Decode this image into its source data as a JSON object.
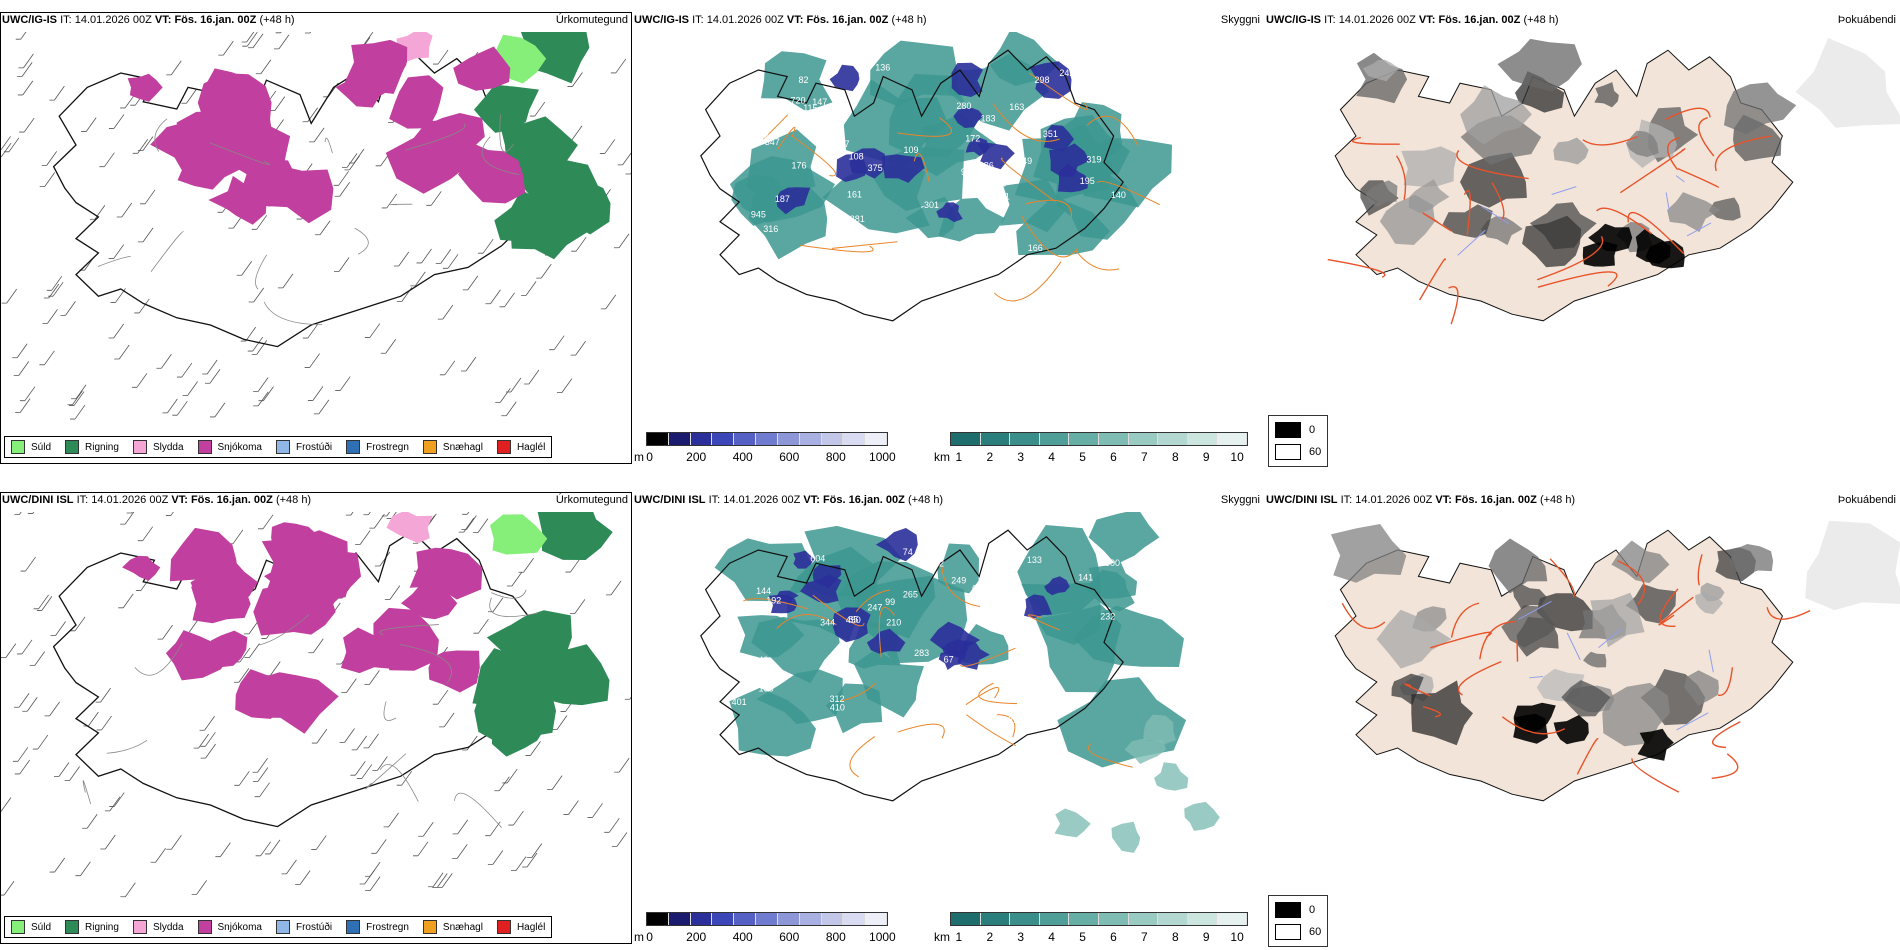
{
  "panels": [
    {
      "model": "UWC/IG-IS",
      "it_label": "IT:",
      "it_value": "14.01.2026 00Z",
      "vt_label": "VT:",
      "vt_value": "Fös. 16.jan. 00Z",
      "lead": "(+48 h)",
      "product": "Úrkomutegund"
    },
    {
      "model": "UWC/IG-IS",
      "it_label": "IT:",
      "it_value": "14.01.2026 00Z",
      "vt_label": "VT:",
      "vt_value": "Fös. 16.jan. 00Z",
      "lead": "(+48 h)",
      "product": "Skyggni"
    },
    {
      "model": "UWC/IG-IS",
      "it_label": "IT:",
      "it_value": "14.01.2026 00Z",
      "vt_label": "VT:",
      "vt_value": "Fös. 16.jan. 00Z",
      "lead": "(+48 h)",
      "product": "Þokuábendi"
    },
    {
      "model": "UWC/DINI ISL",
      "it_label": "IT:",
      "it_value": "14.01.2026 00Z",
      "vt_label": "VT:",
      "vt_value": "Fös. 16.jan. 00Z",
      "lead": "(+48 h)",
      "product": "Úrkomutegund"
    },
    {
      "model": "UWC/DINI ISL",
      "it_label": "IT:",
      "it_value": "14.01.2026 00Z",
      "vt_label": "VT:",
      "vt_value": "Fös. 16.jan. 00Z",
      "lead": "(+48 h)",
      "product": "Skyggni"
    },
    {
      "model": "UWC/DINI ISL",
      "it_label": "IT:",
      "it_value": "14.01.2026 00Z",
      "vt_label": "VT:",
      "vt_value": "Fös. 16.jan. 00Z",
      "lead": "(+48 h)",
      "product": "Þokuábendi"
    }
  ],
  "precip_legend": [
    {
      "label": "Súld",
      "color": "#86ef7a"
    },
    {
      "label": "Rigning",
      "color": "#2e8b57"
    },
    {
      "label": "Slydda",
      "color": "#f4a6d7"
    },
    {
      "label": "Snjókoma",
      "color": "#c13f9e"
    },
    {
      "label": "Frostúði",
      "color": "#8fb8e8"
    },
    {
      "label": "Frostregn",
      "color": "#2f6fb5"
    },
    {
      "label": "Snæhagl",
      "color": "#f0a020"
    },
    {
      "label": "Haglél",
      "color": "#e02020"
    }
  ],
  "ceiling_bar": {
    "unit": "m",
    "ticks": [
      "0",
      "200",
      "400",
      "600",
      "800",
      "1000"
    ],
    "colors": [
      "#000000",
      "#1a1a6e",
      "#2a2f9a",
      "#3b46b8",
      "#5561c4",
      "#6f7ccf",
      "#8d97d8",
      "#a9b0e2",
      "#c2c7ea",
      "#d8dbf2",
      "#eceef8"
    ]
  },
  "visibility_bar": {
    "unit": "km",
    "ticks": [
      "1",
      "2",
      "3",
      "4",
      "5",
      "6",
      "7",
      "8",
      "9",
      "10"
    ],
    "colors": [
      "#1f6e6e",
      "#2a7f7c",
      "#3a8f8a",
      "#4f9f98",
      "#66aea6",
      "#7fbdb4",
      "#99cbc3",
      "#b3d8d1",
      "#cde5df",
      "#e4f1ee"
    ]
  },
  "fog_legend": {
    "rows": [
      {
        "label": "0",
        "color": "#000000"
      },
      {
        "label": "60",
        "color": "#ffffff"
      }
    ]
  },
  "visibility_labels_top": [
    "161",
    "147",
    "301",
    "115",
    "191",
    "117",
    "82",
    "136",
    "196",
    "99",
    "172",
    "187",
    "298",
    "163",
    "242",
    "316",
    "945",
    "280",
    "351",
    "319",
    "397",
    "381",
    "230",
    "375",
    "195",
    "286",
    "302",
    "242",
    "176",
    "347",
    "349",
    "168",
    "166",
    "183",
    "720",
    "109",
    "140",
    "108"
  ],
  "visibility_labels_bottom": [
    "604",
    "247",
    "210",
    "283",
    "133",
    "401",
    "162",
    "144",
    "312",
    "402",
    "249",
    "343",
    "344",
    "624",
    "196",
    "359",
    "510",
    "450",
    "271",
    "321",
    "184",
    "141",
    "99",
    "140",
    "67",
    "300",
    "410",
    "85",
    "223",
    "74",
    "70",
    "192",
    "232",
    "265"
  ],
  "colors": {
    "snow": "#c13f9e",
    "rain": "#2e8b57",
    "drizzle": "#86ef7a",
    "sleet": "#f4a6d7",
    "coast": "#111111",
    "roads": "#e8852a",
    "fog_land": "#f2e4d8",
    "fog_roads": "#e8532a",
    "vis_teal": "#3d9691",
    "ceiling_blue": "#2a2f9a"
  }
}
